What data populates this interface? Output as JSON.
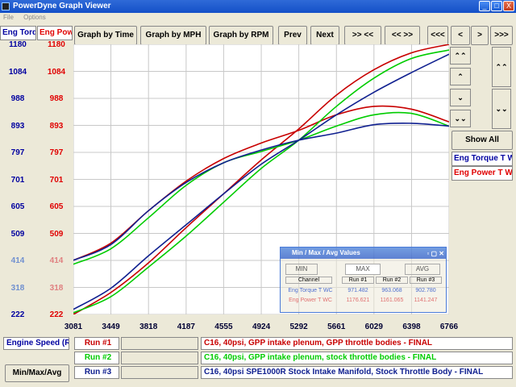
{
  "window": {
    "title": "PowerDyne Graph Viewer",
    "minimize": "_",
    "maximize": "□",
    "close": "X"
  },
  "menu": [
    "File",
    "Options"
  ],
  "headers": {
    "torque": "Eng Torq",
    "power": "Eng Pow"
  },
  "toolbar": {
    "by_time": "Graph by Time",
    "by_mph": "Graph by MPH",
    "by_rpm": "Graph by RPM",
    "prev": "Prev",
    "next": "Next",
    "zoom_in": ">> <<",
    "zoom_out": "<< >>",
    "first": "<<<",
    "left": "<",
    "right": ">",
    "last": ">>>"
  },
  "side": {
    "up_fast": "⌃⌃",
    "up": "⌃",
    "down": "⌄",
    "down_fast": "⌄⌄",
    "show_all": "Show All",
    "channel_torque": "Eng Torque T WC",
    "channel_power": "Eng Power T WC"
  },
  "colors": {
    "torque": "#0000a0",
    "power": "#e00000",
    "run1": "#c80000",
    "run2": "#00cc00",
    "run3": "#102090"
  },
  "y_torque": [
    "1180",
    "1084",
    "988",
    "893",
    "797",
    "701",
    "605",
    "509",
    "414",
    "318",
    "222"
  ],
  "y_power": [
    "1180",
    "1084",
    "988",
    "893",
    "797",
    "701",
    "605",
    "509",
    "414",
    "318",
    "222"
  ],
  "popup": {
    "title": "Min / Max / Avg Values",
    "tabs": [
      "MIN",
      "MAX",
      "AVG"
    ],
    "columns": [
      "Channel",
      "Run #1",
      "Run #2",
      "Run #3"
    ],
    "rows": [
      {
        "channel": "Eng Torque T WC",
        "r1": "971.482",
        "r2": "963.068",
        "r3": "902.780"
      },
      {
        "channel": "Eng Power T WC",
        "r1": "1176.621",
        "r2": "1161.065",
        "r3": "1141.247"
      }
    ]
  },
  "footer": {
    "axis_label": "Engine Speed (RI",
    "minmax_button": "Min/Max/Avg",
    "runs": [
      {
        "label": "Run #1",
        "desc": "C16, 40psi, GPP intake plenum, GPP throttle bodies - FINAL"
      },
      {
        "label": "Run #2",
        "desc": "C16, 40psi, GPP intake plenum, stock throttle bodies - FINAL"
      },
      {
        "label": "Run #3",
        "desc": "C16, 40psi SPE1000R Stock Intake Manifold, Stock Throttle Body - FINAL"
      }
    ]
  },
  "chart_data": {
    "type": "line",
    "x_ticks": [
      3081,
      3449,
      3818,
      4187,
      4555,
      4924,
      5292,
      5661,
      6029,
      6398,
      6766
    ],
    "xlim": [
      3081,
      6766
    ],
    "ylim": [
      222,
      1180
    ],
    "grid": true,
    "series": [
      {
        "name": "Run #1",
        "channel": "torque",
        "color": "#c80000",
        "x": [
          3081,
          3449,
          3818,
          4187,
          4555,
          4924,
          5292,
          5661,
          6029,
          6398,
          6766
        ],
        "y": [
          414,
          475,
          590,
          695,
          775,
          830,
          875,
          930,
          960,
          950,
          905
        ]
      },
      {
        "name": "Run #1",
        "channel": "power",
        "color": "#c80000",
        "x": [
          3081,
          3449,
          3818,
          4187,
          4555,
          4924,
          5292,
          5661,
          6029,
          6398,
          6766
        ],
        "y": [
          222,
          300,
          405,
          530,
          650,
          770,
          880,
          1000,
          1090,
          1150,
          1180
        ]
      },
      {
        "name": "Run #2",
        "channel": "torque",
        "color": "#00cc00",
        "x": [
          3081,
          3449,
          3818,
          4187,
          4555,
          4924,
          5292,
          5661,
          6029,
          6398,
          6766
        ],
        "y": [
          400,
          455,
          565,
          680,
          760,
          800,
          840,
          890,
          930,
          935,
          890
        ]
      },
      {
        "name": "Run #2",
        "channel": "power",
        "color": "#00cc00",
        "x": [
          3081,
          3449,
          3818,
          4187,
          4555,
          4924,
          5292,
          5661,
          6029,
          6398,
          6766
        ],
        "y": [
          228,
          285,
          390,
          500,
          620,
          740,
          840,
          960,
          1060,
          1130,
          1160
        ]
      },
      {
        "name": "Run #3",
        "channel": "torque",
        "color": "#102090",
        "x": [
          3081,
          3449,
          3818,
          4187,
          4555,
          4924,
          5292,
          5661,
          6029,
          6398,
          6766
        ],
        "y": [
          414,
          470,
          590,
          690,
          760,
          805,
          840,
          865,
          895,
          900,
          890
        ]
      },
      {
        "name": "Run #3",
        "channel": "power",
        "color": "#102090",
        "x": [
          3081,
          3449,
          3818,
          4187,
          4555,
          4924,
          5292,
          5661,
          6029,
          6398,
          6766
        ],
        "y": [
          240,
          315,
          430,
          540,
          650,
          755,
          840,
          930,
          1010,
          1080,
          1145
        ]
      }
    ]
  }
}
